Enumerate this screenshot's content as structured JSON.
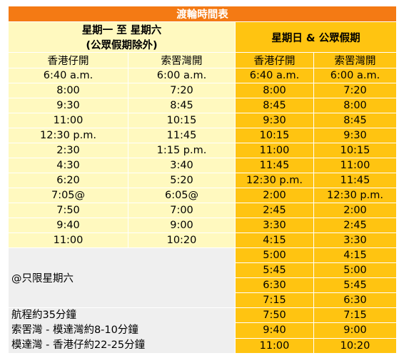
{
  "title": "渡輪時間表",
  "weekday": {
    "header_line1": "星期一 至 星期六",
    "header_line2": "(公眾假期除外)",
    "col_a": "香港仔開",
    "col_b": "索罟灣開",
    "times": [
      [
        "6:40 a.m.",
        "6:00 a.m."
      ],
      [
        "8:00",
        "7:20"
      ],
      [
        "9:30",
        "8:45"
      ],
      [
        "11:00",
        "10:15"
      ],
      [
        "12:30 p.m.",
        "11:45"
      ],
      [
        "2:30",
        "1:15 p.m."
      ],
      [
        "4:30",
        "3:40"
      ],
      [
        "6:20",
        "5:20"
      ],
      [
        "7:05@",
        "6:05@"
      ],
      [
        "7:50",
        "7:00"
      ],
      [
        "9:40",
        "9:00"
      ],
      [
        "11:00",
        "10:20"
      ]
    ]
  },
  "holiday": {
    "header": "星期日 & 公眾假期",
    "col_a": "香港仔開",
    "col_b": "索罟灣開",
    "times": [
      [
        "6:40 a.m.",
        "6:00 a.m."
      ],
      [
        "8:00",
        "7:20"
      ],
      [
        "8:45",
        "8:00"
      ],
      [
        "9:30",
        "8:45"
      ],
      [
        "10:15",
        "9:30"
      ],
      [
        "11:00",
        "10:15"
      ],
      [
        "11:45",
        "11:00"
      ],
      [
        "12:30 p.m.",
        "11:45"
      ],
      [
        "2:00",
        "12:30 p.m."
      ],
      [
        "2:45",
        "2:00"
      ],
      [
        "3:30",
        "2:45"
      ],
      [
        "4:15",
        "3:30"
      ],
      [
        "5:00",
        "4:15"
      ],
      [
        "5:45",
        "5:00"
      ],
      [
        "6:30",
        "5:45"
      ],
      [
        "7:15",
        "6:30"
      ],
      [
        "7:50",
        "7:15"
      ],
      [
        "9:40",
        "9:00"
      ],
      [
        "11:00",
        "10:20"
      ]
    ]
  },
  "notes": {
    "saturday_only": "@只限星期六",
    "journey_time": "航程約35分鐘",
    "sokkwuwan_mowtatwan": "索罟灣 - 模達灣約8-10分鐘",
    "mowtatwan_aberdeen": "模達灣 - 香港仔約22-25分鐘"
  }
}
